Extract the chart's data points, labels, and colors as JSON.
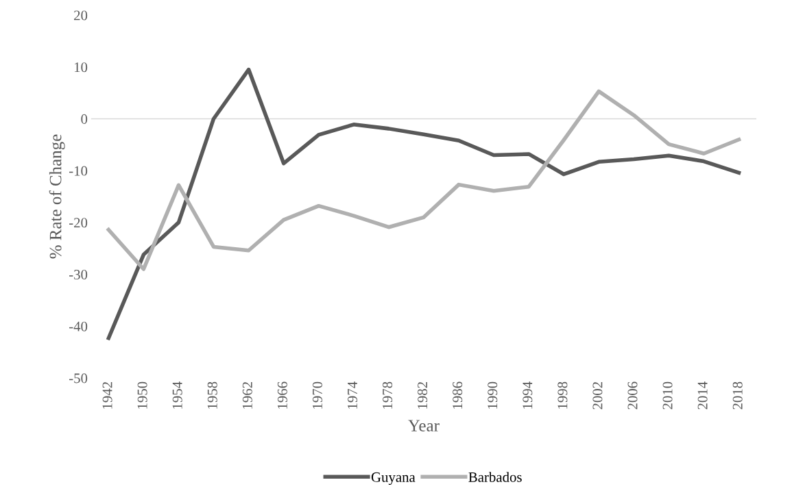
{
  "chart_data": {
    "type": "line",
    "xlabel": "Year",
    "ylabel": "% Rate of Change",
    "categories": [
      "1942",
      "1950",
      "1954",
      "1958",
      "1962",
      "1966",
      "1970",
      "1974",
      "1978",
      "1982",
      "1986",
      "1990",
      "1994",
      "1998",
      "2002",
      "2006",
      "2010",
      "2014",
      "2018"
    ],
    "series": [
      {
        "name": "Guyana",
        "color": "#595959",
        "values": [
          -42.3,
          -26.2,
          -20,
          0,
          9.5,
          -8.6,
          -3.1,
          -1.1,
          -1.9,
          -3.0,
          -4.2,
          -7.0,
          -6.8,
          -10.7,
          -8.3,
          -7.8,
          -7.1,
          -8.2,
          -10.4
        ]
      },
      {
        "name": "Barbados",
        "color": "#b0b0b0",
        "values": [
          -21.4,
          -29,
          -12.8,
          -24.7,
          -25.4,
          -19.5,
          -16.8,
          -18.7,
          -20.9,
          -19,
          -12.7,
          -13.9,
          -13.1,
          -4.1,
          5.3,
          0.7,
          -4.9,
          -6.7,
          -4.0
        ]
      }
    ],
    "ylim": [
      -50,
      20
    ],
    "yticks": [
      -50,
      -40,
      -30,
      -20,
      -10,
      0,
      10,
      20
    ],
    "ref_lines": [
      {
        "axis": "y",
        "value": 0,
        "color": "#d9d9d9"
      }
    ],
    "grid": false,
    "legend": "bottom",
    "marker": "none",
    "line_style": "solid"
  }
}
